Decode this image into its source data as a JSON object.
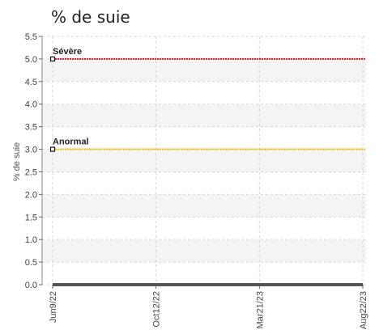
{
  "chart_data": {
    "type": "line",
    "title": "% de suie",
    "xlabel": "",
    "ylabel": "% de suie",
    "ylim": [
      0,
      5.5
    ],
    "yticks": [
      "0.0",
      "0.5",
      "1.0",
      "1.5",
      "2.0",
      "2.5",
      "3.0",
      "3.5",
      "4.0",
      "4.5",
      "5.0",
      "5.5"
    ],
    "x_tick_labels": [
      "Jun9/22",
      "Oct12/22",
      "Mar21/23",
      "Aug22/23"
    ],
    "grid": true,
    "thresholds": [
      {
        "name": "Sévère",
        "value": 5.0,
        "color": "#e8141c"
      },
      {
        "name": "Anormal",
        "value": 3.0,
        "color": "#f2c200"
      }
    ],
    "series": [
      {
        "values": [
          0.0,
          0.0,
          0.0,
          0.0
        ],
        "color": "#555555"
      }
    ]
  }
}
